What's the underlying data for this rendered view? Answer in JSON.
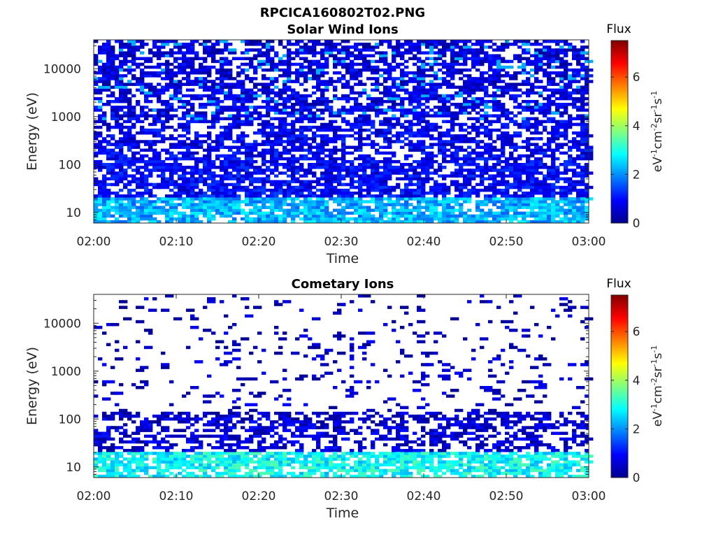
{
  "title": "RPCICA160802T02.PNG",
  "colors": {
    "axis": "#262626",
    "background": "#ffffff",
    "colormap": "jet"
  },
  "chart_data": [
    {
      "type": "heatmap",
      "title": "Solar Wind Ions",
      "xlabel": "Time",
      "ylabel": "Energy (eV)",
      "x_ticks": [
        "02:00",
        "02:10",
        "02:20",
        "02:30",
        "02:40",
        "02:50",
        "03:00"
      ],
      "y_ticks": [
        "10",
        "100",
        "1000",
        "10000"
      ],
      "y_scale": "log",
      "ylim": [
        6,
        40000
      ],
      "xlim": [
        "02:00",
        "03:00"
      ],
      "colorbar": {
        "title": "Flux",
        "label": "eV-1cm-2sr-1s-1",
        "ticks": [
          "0",
          "2",
          "4",
          "6"
        ],
        "range": [
          0,
          7.5
        ]
      },
      "distribution": {
        "seed": 11,
        "density_high": 0.55,
        "density_low": 0.75,
        "value_low": 2.0,
        "value_high": 1.0
      }
    },
    {
      "type": "heatmap",
      "title": "Cometary Ions",
      "xlabel": "Time",
      "ylabel": "Energy (eV)",
      "x_ticks": [
        "02:00",
        "02:10",
        "02:20",
        "02:30",
        "02:40",
        "02:50",
        "03:00"
      ],
      "y_ticks": [
        "10",
        "100",
        "1000",
        "10000"
      ],
      "y_scale": "log",
      "ylim": [
        6,
        40000
      ],
      "xlim": [
        "02:00",
        "03:00"
      ],
      "colorbar": {
        "title": "Flux",
        "label": "eV-1cm-2sr-1s-1",
        "ticks": [
          "0",
          "2",
          "4",
          "6"
        ],
        "range": [
          0,
          7.5
        ]
      },
      "distribution": {
        "seed": 29,
        "density_high": 0.08,
        "density_low": 0.75,
        "value_low": 2.6,
        "value_high": 0.7
      }
    }
  ]
}
